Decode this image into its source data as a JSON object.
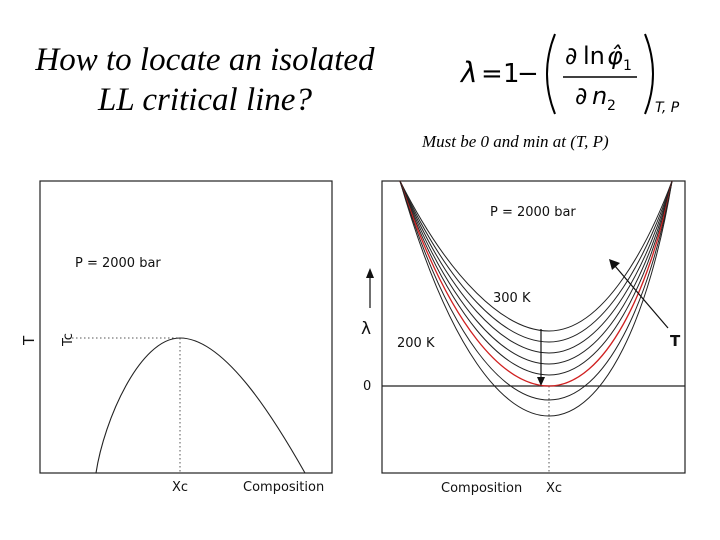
{
  "slide": {
    "title_line1": "How to locate an isolated",
    "title_line2": "LL critical line?",
    "formula": {
      "lhs": "λ",
      "equals": "=",
      "one": "1",
      "minus": "−",
      "numerator_partial": "∂",
      "numerator_ln": "ln",
      "numerator_phi": "φ̂",
      "numerator_sub": "1",
      "denominator_partial": "∂",
      "denominator_n": "n",
      "denominator_sub": "2",
      "condition": "T, P"
    },
    "note": "Must be 0 and min at (T, P)"
  },
  "left_plot": {
    "pressure_label": "P = 2000 bar",
    "y_axis_label": "T",
    "y_axis_label_secondary": "Tc",
    "xc_label": "Xc",
    "x_axis_label": "Composition"
  },
  "right_plot": {
    "pressure_label": "P = 2000 bar",
    "y_axis_label": "λ",
    "zero_label": "0",
    "upper_temp_label": "300 K",
    "lower_temp_label": "200 K",
    "arrow_label": "T",
    "x_axis_label": "Composition",
    "xc_label": "Xc",
    "highlight_color": "#d02020"
  }
}
